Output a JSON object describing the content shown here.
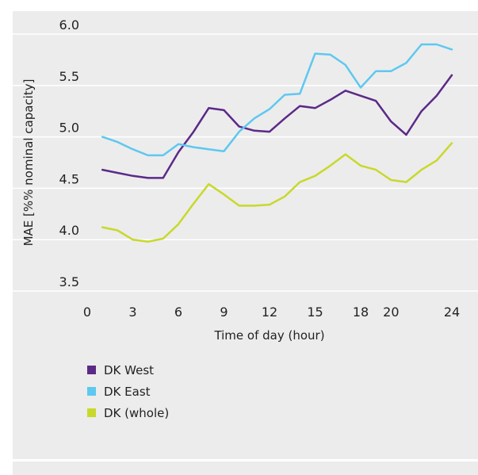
{
  "chart_data": {
    "type": "line",
    "xlabel": "Time of day (hour)",
    "ylabel": "MAE [%% nominal capacity]",
    "xlim": [
      0,
      24
    ],
    "ylim": [
      3.5,
      6.0
    ],
    "x_ticks": [
      0,
      3,
      6,
      9,
      12,
      15,
      18,
      20,
      24
    ],
    "y_ticks": [
      "3.5",
      "4.0",
      "4.5",
      "5.0",
      "5.5",
      "6.0"
    ],
    "grid": "horizontal",
    "legend_position": "bottom-left",
    "x": [
      1,
      2,
      3,
      4,
      5,
      6,
      7,
      8,
      9,
      10,
      11,
      12,
      13,
      14,
      15,
      16,
      17,
      18,
      19,
      20,
      21,
      22,
      23,
      24
    ],
    "series": [
      {
        "name": "DK West",
        "color": "#5b2a86",
        "values": [
          4.68,
          4.65,
          4.62,
          4.6,
          4.6,
          4.85,
          5.05,
          5.28,
          5.26,
          5.1,
          5.06,
          5.05,
          5.18,
          5.3,
          5.28,
          5.36,
          5.45,
          5.4,
          5.35,
          5.15,
          5.02,
          5.25,
          5.4,
          5.6
        ]
      },
      {
        "name": "DK East",
        "color": "#5ec8ef",
        "values": [
          5.0,
          4.95,
          4.88,
          4.82,
          4.82,
          4.93,
          4.9,
          4.88,
          4.86,
          5.05,
          5.18,
          5.27,
          5.41,
          5.42,
          5.81,
          5.8,
          5.7,
          5.48,
          5.64,
          5.64,
          5.72,
          5.9,
          5.9,
          5.85
        ]
      },
      {
        "name": "DK (whole)",
        "color": "#c8d92a",
        "values": [
          4.12,
          4.09,
          4.0,
          3.98,
          4.01,
          4.15,
          4.35,
          4.54,
          4.44,
          4.33,
          4.33,
          4.34,
          4.42,
          4.56,
          4.62,
          4.72,
          4.83,
          4.72,
          4.68,
          4.58,
          4.56,
          4.68,
          4.77,
          4.94
        ]
      }
    ]
  }
}
